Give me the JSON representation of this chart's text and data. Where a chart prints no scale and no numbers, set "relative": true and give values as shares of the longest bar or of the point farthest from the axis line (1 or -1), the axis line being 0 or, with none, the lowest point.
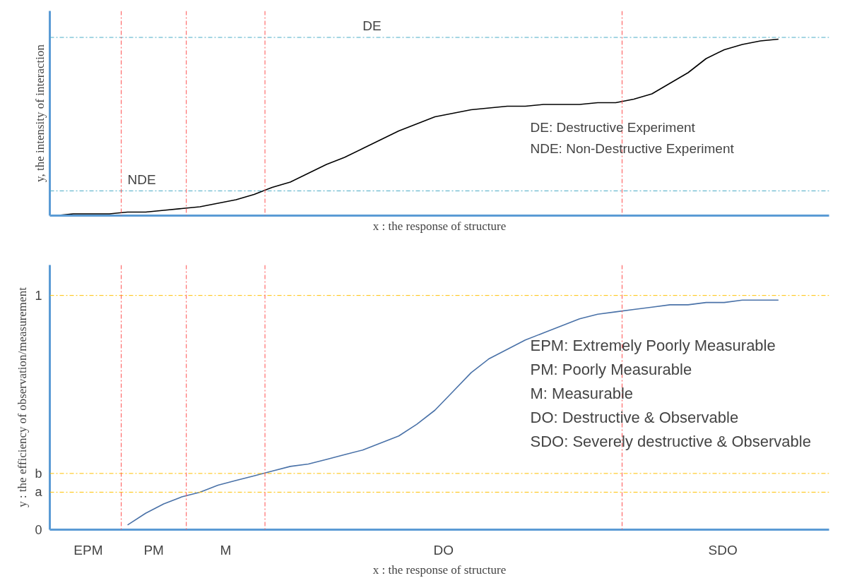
{
  "chart_data": [
    {
      "type": "line",
      "relative": true,
      "ylabel": "y, the intensity of interaction",
      "xlabel": "x : the response of structure",
      "categories": [
        null,
        null,
        null,
        null,
        null,
        null,
        null,
        null,
        null,
        null,
        null,
        null,
        null,
        null,
        null,
        null,
        null,
        null,
        null,
        null,
        null,
        null,
        null,
        null,
        null,
        null,
        null,
        null,
        null,
        null,
        null,
        null,
        null,
        null,
        null,
        null,
        null,
        null,
        null,
        null,
        null
      ],
      "series": [
        {
          "color": "#000000",
          "values": [
            0.0,
            0.01,
            0.01,
            0.01,
            0.02,
            0.02,
            0.03,
            0.04,
            0.05,
            0.07,
            0.09,
            0.12,
            0.16,
            0.19,
            0.24,
            0.29,
            0.33,
            0.38,
            0.43,
            0.48,
            0.52,
            0.56,
            0.58,
            0.6,
            0.61,
            0.62,
            0.62,
            0.63,
            0.63,
            0.63,
            0.64,
            0.64,
            0.66,
            0.69,
            0.75,
            0.81,
            0.89,
            0.94,
            0.97,
            0.99,
            1.0
          ]
        }
      ],
      "ref_lines": [
        {
          "axis": "y",
          "value": 0.14,
          "label": "NDE",
          "color": "#4bacc6",
          "line_style": "dashed"
        },
        {
          "axis": "y",
          "value": 1.01,
          "label": "DE",
          "color": "#4bacc6",
          "line_style": "dashed"
        }
      ],
      "annotations": [
        "DE: Destructive Experiment",
        "NDE: Non-Destructive Experiment"
      ],
      "grid": false,
      "line_style": "solid",
      "marker": "none"
    },
    {
      "type": "line",
      "ylabel": "y : the efficiency of observation/measurement",
      "xlabel": "x : the response of structure",
      "categories": [
        null,
        null,
        null,
        null,
        null,
        null,
        null,
        null,
        null,
        null,
        null,
        null,
        null,
        null,
        null,
        null,
        null,
        null,
        null,
        null,
        null,
        null,
        null,
        null,
        null,
        null,
        null,
        null,
        null,
        null,
        null,
        null,
        null,
        null,
        null,
        null,
        null,
        null,
        null,
        null,
        null
      ],
      "series": [
        {
          "color": "#4a72a8",
          "values": [
            null,
            null,
            null,
            null,
            0.02,
            0.07,
            0.11,
            0.14,
            0.16,
            0.19,
            0.21,
            0.23,
            0.25,
            0.27,
            0.28,
            0.3,
            0.32,
            0.34,
            0.37,
            0.4,
            0.45,
            0.51,
            0.59,
            0.67,
            0.73,
            0.77,
            0.81,
            0.84,
            0.87,
            0.9,
            0.92,
            0.93,
            0.94,
            0.95,
            0.96,
            0.96,
            0.97,
            0.97,
            0.98,
            0.98,
            0.98
          ]
        }
      ],
      "ylim": [
        0,
        1.13
      ],
      "yticks": [
        0,
        {
          "value": 0.16,
          "label": "a"
        },
        {
          "value": 0.24,
          "label": "b"
        },
        1
      ],
      "ref_lines": [
        {
          "axis": "y",
          "value": 1,
          "color": "#ffc000",
          "line_style": "dashed"
        },
        {
          "axis": "y",
          "value": 0.24,
          "color": "#ffc000",
          "line_style": "dashed"
        },
        {
          "axis": "y",
          "value": 0.16,
          "color": "#ffc000",
          "line_style": "dashed"
        }
      ],
      "annotations": [
        "EPM: Extremely Poorly Measurable",
        "PM: Poorly Measurable",
        "M: Measurable",
        "DO: Destructive & Observable",
        "SDO: Severely destructive & Observable",
        "EPM",
        "PM",
        "M",
        "DO",
        "SDO"
      ],
      "grid": false,
      "line_style": "solid",
      "marker": "none"
    }
  ]
}
